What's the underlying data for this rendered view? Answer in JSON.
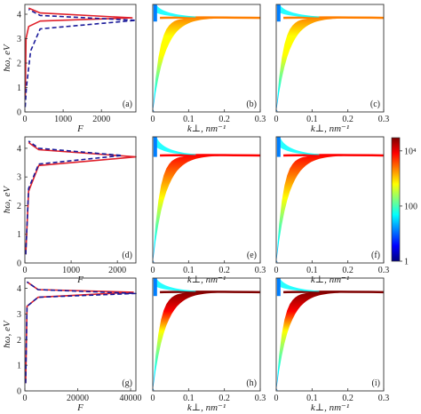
{
  "colorbar": {
    "scale": "log",
    "range": [
      1,
      30000
    ],
    "ticks": [
      {
        "value": 1,
        "label": "1"
      },
      {
        "value": 100,
        "label": "100"
      },
      {
        "value": 10000,
        "label": "10⁴"
      }
    ],
    "colors": [
      "#00007f",
      "#0000ff",
      "#007fff",
      "#00ffff",
      "#7fff7f",
      "#ffff00",
      "#ff7f00",
      "#ff0000",
      "#7f0000"
    ]
  },
  "chart_data": [
    {
      "type": "line",
      "panel": "(a)",
      "xlabel": "F",
      "ylabel": "ħω, eV",
      "xlim": [
        0,
        2900
      ],
      "ylim": [
        0,
        4.4
      ],
      "xticks": [
        {
          "value": 0,
          "label": "0"
        },
        {
          "value": 1000,
          "label": "1000"
        },
        {
          "value": 2000,
          "label": "2000"
        }
      ],
      "yticks": [
        0,
        1,
        2,
        3,
        4
      ],
      "series": [
        {
          "style": "solid",
          "color": "#e0202a",
          "resonance": 3.85,
          "peak": 2800,
          "points": [
            [
              10,
              0.5
            ],
            [
              30,
              3.0
            ],
            [
              100,
              3.5
            ],
            [
              400,
              3.72
            ],
            [
              2800,
              3.85
            ],
            [
              400,
              4.05
            ],
            [
              100,
              4.25
            ]
          ]
        },
        {
          "style": "dashed",
          "color": "#1a1a9a",
          "resonance": 3.75,
          "peak": 2900,
          "points": [
            [
              10,
              0.2
            ],
            [
              40,
              1.0
            ],
            [
              150,
              2.5
            ],
            [
              400,
              3.4
            ],
            [
              2900,
              3.75
            ],
            [
              400,
              3.95
            ],
            [
              100,
              4.2
            ]
          ]
        }
      ]
    },
    {
      "type": "heatmap",
      "panel": "(b)",
      "xlabel": "k⊥, nm⁻¹",
      "xlim": [
        0,
        0.3
      ],
      "ylim": [
        0,
        4.4
      ],
      "resonance": 3.85,
      "xticks": [
        0,
        0.1,
        0.2,
        0.3
      ],
      "intensity": "low"
    },
    {
      "type": "heatmap",
      "panel": "(c)",
      "xlabel": "k⊥, nm⁻¹",
      "xlim": [
        0,
        0.3
      ],
      "ylim": [
        0,
        4.4
      ],
      "resonance": 3.85,
      "xticks": [
        0,
        0.1,
        0.2,
        0.3
      ],
      "intensity": "low"
    },
    {
      "type": "line",
      "panel": "(d)",
      "xlabel": "F",
      "ylabel": "ħω, eV",
      "xlim": [
        0,
        2400
      ],
      "ylim": [
        0,
        4.4
      ],
      "xticks": [
        {
          "value": 0,
          "label": "0"
        },
        {
          "value": 1000,
          "label": "1000"
        },
        {
          "value": 2000,
          "label": "2000"
        }
      ],
      "yticks": [
        0,
        1,
        2,
        3,
        4
      ],
      "series": [
        {
          "style": "solid",
          "color": "#e0202a",
          "resonance": 3.7,
          "peak": 2400,
          "points": [
            [
              20,
              0.3
            ],
            [
              80,
              2.5
            ],
            [
              300,
              3.4
            ],
            [
              2400,
              3.7
            ],
            [
              300,
              3.95
            ],
            [
              80,
              4.2
            ]
          ]
        },
        {
          "style": "dashed",
          "color": "#1a1a9a",
          "resonance": 3.75,
          "peak": 2100,
          "points": [
            [
              20,
              0.3
            ],
            [
              80,
              2.6
            ],
            [
              300,
              3.45
            ],
            [
              2100,
              3.75
            ],
            [
              300,
              4.0
            ],
            [
              80,
              4.25
            ]
          ]
        }
      ]
    },
    {
      "type": "heatmap",
      "panel": "(e)",
      "xlabel": "k⊥, nm⁻¹",
      "xlim": [
        0,
        0.3
      ],
      "ylim": [
        0,
        4.4
      ],
      "resonance": 3.75,
      "xticks": [
        0,
        0.1,
        0.2,
        0.3
      ],
      "intensity": "mid"
    },
    {
      "type": "heatmap",
      "panel": "(f)",
      "xlabel": "k⊥, nm⁻¹",
      "xlim": [
        0,
        0.3
      ],
      "ylim": [
        0,
        4.4
      ],
      "resonance": 3.75,
      "xticks": [
        0,
        0.1,
        0.2,
        0.3
      ],
      "intensity": "mid"
    },
    {
      "type": "line",
      "panel": "(g)",
      "xlabel": "F",
      "ylabel": "ħω, eV",
      "xlim": [
        0,
        42000
      ],
      "ylim": [
        0,
        4.4
      ],
      "xticks": [
        {
          "value": 0,
          "label": "0"
        },
        {
          "value": 20000,
          "label": "20000"
        },
        {
          "value": 40000,
          "label": "40000"
        }
      ],
      "yticks": [
        0,
        1,
        2,
        3,
        4
      ],
      "series": [
        {
          "style": "solid",
          "color": "#e0202a",
          "resonance": 3.85,
          "peak": 41000,
          "points": [
            [
              300,
              0.3
            ],
            [
              800,
              3.3
            ],
            [
              5000,
              3.65
            ],
            [
              41000,
              3.85
            ],
            [
              5000,
              3.95
            ],
            [
              800,
              4.25
            ]
          ]
        },
        {
          "style": "dashed",
          "color": "#1a1a9a",
          "resonance": 3.8,
          "peak": 42000,
          "points": [
            [
              300,
              0.3
            ],
            [
              800,
              3.3
            ],
            [
              5000,
              3.65
            ],
            [
              42000,
              3.8
            ],
            [
              5000,
              3.95
            ],
            [
              800,
              4.25
            ]
          ]
        }
      ]
    },
    {
      "type": "heatmap",
      "panel": "(h)",
      "xlabel": "k⊥, nm⁻¹",
      "xlim": [
        0,
        0.3
      ],
      "ylim": [
        0,
        4.4
      ],
      "resonance": 3.85,
      "xticks": [
        0,
        0.1,
        0.2,
        0.3
      ],
      "intensity": "high"
    },
    {
      "type": "heatmap",
      "panel": "(i)",
      "xlabel": "k⊥, nm⁻¹",
      "xlim": [
        0,
        0.3
      ],
      "ylim": [
        0,
        4.4
      ],
      "resonance": 3.85,
      "xticks": [
        0,
        0.1,
        0.2,
        0.3
      ],
      "intensity": "high"
    }
  ]
}
